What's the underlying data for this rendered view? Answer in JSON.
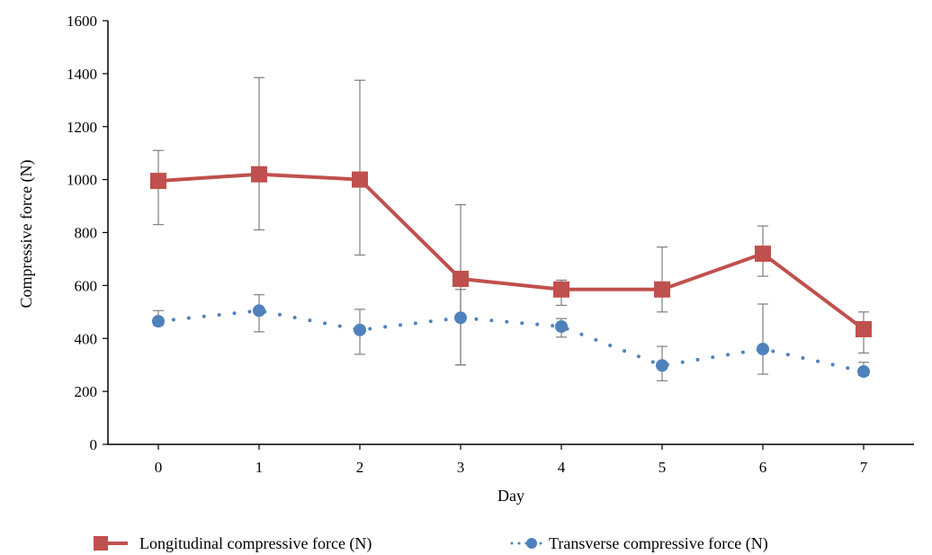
{
  "chart_data": {
    "type": "line",
    "title": "",
    "xlabel": "Day",
    "ylabel": "Compressive force (N)",
    "categories": [
      "0",
      "1",
      "2",
      "3",
      "4",
      "5",
      "6",
      "7"
    ],
    "ylim": [
      0,
      1600
    ],
    "yticks": [
      "0",
      "200",
      "400",
      "600",
      "800",
      "1000",
      "1200",
      "1400",
      "1600"
    ],
    "grid": false,
    "legend_position": "bottom",
    "series": [
      {
        "name": "Longitudinal compressive force (N)",
        "color": "#C0504D",
        "line_style": "solid",
        "marker": "square",
        "values": [
          995,
          1020,
          1000,
          625,
          585,
          585,
          720,
          435
        ],
        "error_low": [
          830,
          810,
          715,
          300,
          525,
          500,
          635,
          345
        ],
        "error_high": [
          1110,
          1385,
          1375,
          905,
          620,
          745,
          825,
          500
        ]
      },
      {
        "name": "Transverse compressive force (N)",
        "color": "#4F81BD",
        "line_style": "dotted",
        "marker": "circle",
        "values": [
          465,
          505,
          432,
          478,
          445,
          298,
          360,
          275
        ],
        "error_low": [
          450,
          425,
          340,
          300,
          405,
          240,
          265,
          260
        ],
        "error_high": [
          505,
          565,
          510,
          585,
          475,
          370,
          530,
          310
        ]
      }
    ]
  }
}
